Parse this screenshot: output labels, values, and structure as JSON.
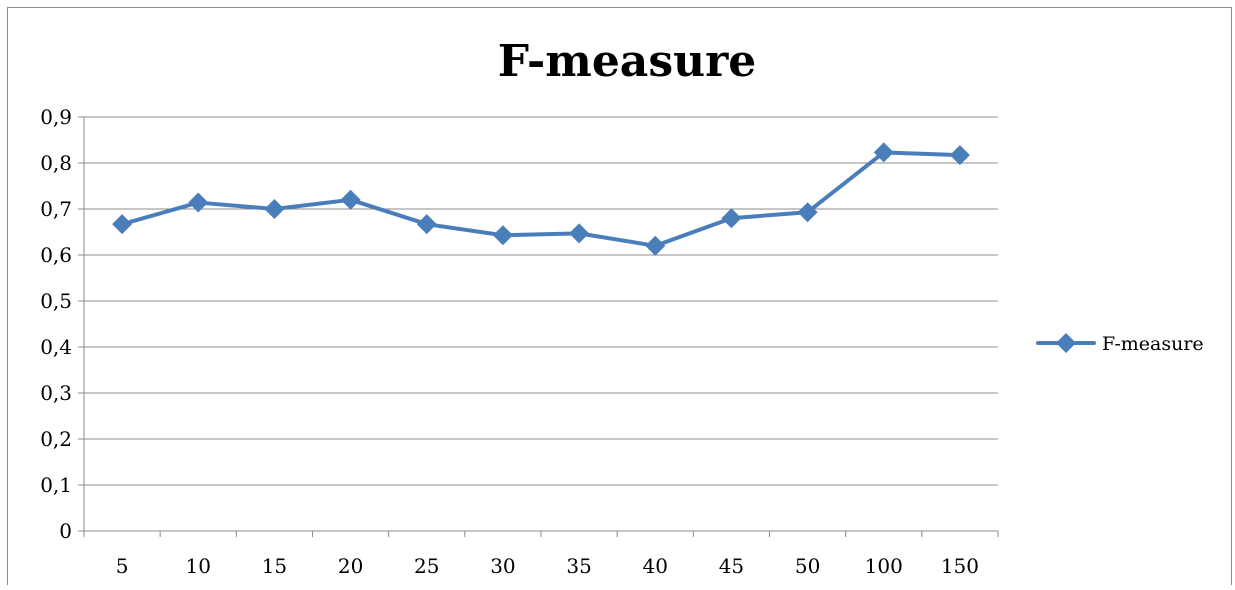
{
  "chart_data": {
    "type": "line",
    "title": "F-measure",
    "xlabel": "",
    "ylabel": "",
    "categories": [
      "5",
      "10",
      "15",
      "20",
      "25",
      "30",
      "35",
      "40",
      "45",
      "50",
      "100",
      "150"
    ],
    "series": [
      {
        "name": "F-measure",
        "values": [
          0.667,
          0.714,
          0.7,
          0.72,
          0.667,
          0.643,
          0.647,
          0.62,
          0.68,
          0.693,
          0.823,
          0.817
        ]
      }
    ],
    "ylim": [
      0,
      0.9
    ],
    "yticks": [
      "0",
      "0,1",
      "0,2",
      "0,3",
      "0,4",
      "0,5",
      "0,6",
      "0,7",
      "0,8",
      "0,9"
    ],
    "grid": true,
    "legend_position": "right",
    "colors": {
      "line": "#4a7ebb",
      "marker": "#4a7ebb",
      "grid": "#8c8c8c",
      "axis": "#8c8c8c"
    }
  }
}
